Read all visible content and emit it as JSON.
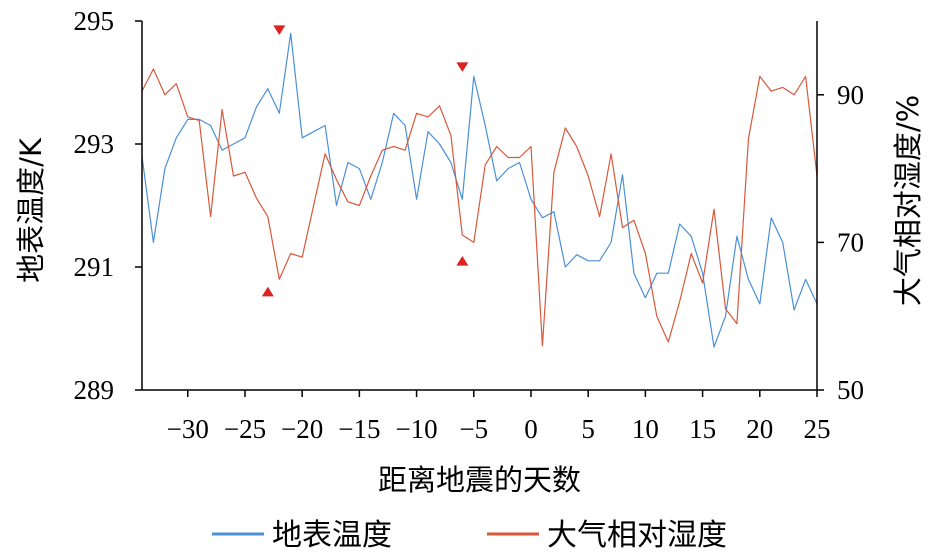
{
  "chart_data": {
    "type": "line",
    "xlabel": "距离地震的天数",
    "ylabel_left": "地表温度/K",
    "ylabel_right": "大气相对湿度/%",
    "xlim": [
      -34,
      25
    ],
    "xticks": [
      -30,
      -25,
      -20,
      -15,
      -10,
      -5,
      0,
      5,
      10,
      15,
      20,
      25
    ],
    "xtick_labels": [
      "−30",
      "−25",
      "−20",
      "−15",
      "−10",
      "−5",
      "0",
      "5",
      "10",
      "15",
      "20",
      "25"
    ],
    "ylim_left": [
      289,
      295
    ],
    "yticks_left": [
      289,
      291,
      293,
      295
    ],
    "ylim_right": [
      50,
      100
    ],
    "yticks_right": [
      50,
      70,
      90
    ],
    "grid": false,
    "legend_position": "bottom",
    "series": [
      {
        "name": "地表温度",
        "axis": "left",
        "color": "#4a90d9",
        "x": [
          -34,
          -33,
          -32,
          -31,
          -30,
          -29,
          -28,
          -27,
          -26,
          -25,
          -24,
          -23,
          -22,
          -21,
          -20,
          -19,
          -18,
          -17,
          -16,
          -15,
          -14,
          -13,
          -12,
          -11,
          -10,
          -9,
          -8,
          -7,
          -6,
          -5,
          -4,
          -3,
          -2,
          -1,
          0,
          1,
          2,
          3,
          4,
          5,
          6,
          7,
          8,
          9,
          10,
          11,
          12,
          13,
          14,
          15,
          16,
          17,
          18,
          19,
          20,
          21,
          22,
          23,
          24,
          25
        ],
        "values": [
          292.8,
          291.4,
          292.6,
          293.1,
          293.4,
          293.4,
          293.3,
          292.9,
          293.0,
          293.1,
          293.6,
          293.9,
          293.5,
          294.8,
          293.1,
          293.2,
          293.3,
          292.0,
          292.7,
          292.6,
          292.1,
          292.7,
          293.5,
          293.3,
          292.1,
          293.2,
          293.0,
          292.7,
          292.1,
          294.1,
          293.3,
          292.4,
          292.6,
          292.7,
          292.1,
          291.8,
          291.9,
          291.0,
          291.2,
          291.1,
          291.1,
          291.4,
          292.5,
          290.9,
          290.5,
          290.9,
          290.9,
          291.7,
          291.5,
          290.9,
          289.7,
          290.2,
          291.5,
          290.8,
          290.4,
          291.8,
          291.4,
          290.3,
          290.8,
          290.4
        ]
      },
      {
        "name": "大气相对湿度",
        "axis": "right",
        "color": "#d9583b",
        "x": [
          -34,
          -33,
          -32,
          -31,
          -30,
          -29,
          -28,
          -27,
          -26,
          -25,
          -24,
          -23,
          -22,
          -21,
          -20,
          -19,
          -18,
          -17,
          -16,
          -15,
          -14,
          -13,
          -12,
          -11,
          -10,
          -9,
          -8,
          -7,
          -6,
          -5,
          -4,
          -3,
          -2,
          -1,
          0,
          1,
          2,
          3,
          4,
          5,
          6,
          7,
          8,
          9,
          10,
          11,
          12,
          13,
          14,
          15,
          16,
          17,
          18,
          19,
          20,
          21,
          22,
          23,
          24,
          25
        ],
        "values": [
          90.5,
          93.5,
          90.0,
          91.5,
          87.0,
          86.5,
          73.5,
          88.0,
          79.0,
          79.5,
          76.0,
          73.5,
          65.0,
          68.5,
          68.0,
          75.0,
          82.0,
          78.5,
          75.5,
          75.0,
          79.0,
          82.5,
          83.0,
          82.5,
          87.5,
          87.0,
          88.5,
          84.5,
          71.0,
          70.0,
          80.5,
          83.0,
          81.5,
          81.5,
          83.0,
          56.0,
          79.5,
          85.5,
          83.0,
          79.0,
          73.5,
          82.0,
          72.0,
          73.0,
          68.5,
          60.0,
          56.5,
          62.0,
          68.5,
          64.5,
          74.5,
          61.0,
          59.0,
          84.0,
          92.5,
          90.5,
          91.0,
          90.0,
          92.5,
          79.0
        ]
      }
    ],
    "annotations": [
      {
        "shape": "triangle-down",
        "x": -22,
        "y_left": 294.85,
        "color": "#dd2222"
      },
      {
        "shape": "triangle-up",
        "x": -23,
        "y_left": 290.6,
        "color": "#dd2222"
      },
      {
        "shape": "triangle-down",
        "x": -6,
        "y_left": 294.25,
        "color": "#dd2222"
      },
      {
        "shape": "triangle-up",
        "x": -6,
        "y_left": 291.1,
        "color": "#dd2222"
      }
    ]
  }
}
